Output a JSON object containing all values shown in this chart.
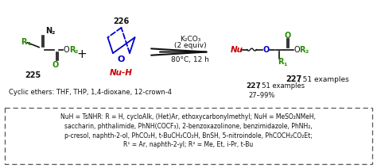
{
  "background_color": "#ffffff",
  "box_text_lines": [
    "NuH = TsNHR: R = H, cycloAlk, (Het)Ar, ethoxycarbonylmethyl; NuH = MeSO₂NMeH,",
    "saccharin, phthalimide, PhNH(COCF₃), 2-benzoxazolinone, benzimidazole, PhNH₂,",
    "p-cresol, naphth-2-ol, PhCO₂H, t-BuCH₂CO₂H, BnSH, 5-nitroindole, PhCOCH₂CO₂Et;",
    "R¹ = Ar, naphth-2-yl; R² = Me, Et, i-Pr, t-Bu"
  ],
  "cyclic_ethers_text": "Cyclic ethers: THF, THP, 1,4-dioxane, 12-crown-4",
  "yield_text": "27–99%",
  "compound_227_label": "227",
  "compound_227_rest": ", 51 examples",
  "compound_225": "225",
  "compound_226": "226",
  "conditions_line1": "K₂CO₃",
  "conditions_line2": "(2 equiv)",
  "conditions_line3": "80°C, 12 h",
  "green_color": "#228B00",
  "red_color": "#CC0000",
  "blue_color": "#0000CC",
  "black_color": "#111111",
  "gray_color": "#555555"
}
